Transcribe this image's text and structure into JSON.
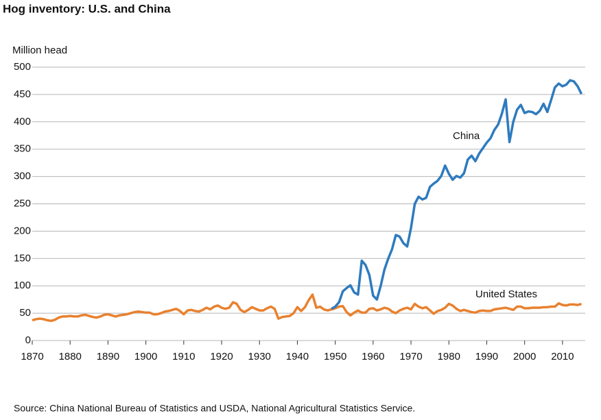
{
  "chart_data": {
    "type": "line",
    "title": "Hog inventory: U.S. and China",
    "y_label": "Million head",
    "source": "Source: China National Bureau of Statistics and USDA, National Agricultural Statistics Service.",
    "x": [
      1870,
      1871,
      1872,
      1873,
      1874,
      1875,
      1876,
      1877,
      1878,
      1879,
      1880,
      1881,
      1882,
      1883,
      1884,
      1885,
      1886,
      1887,
      1888,
      1889,
      1890,
      1891,
      1892,
      1893,
      1894,
      1895,
      1896,
      1897,
      1898,
      1899,
      1900,
      1901,
      1902,
      1903,
      1904,
      1905,
      1906,
      1907,
      1908,
      1909,
      1910,
      1911,
      1912,
      1913,
      1914,
      1915,
      1916,
      1917,
      1918,
      1919,
      1920,
      1921,
      1922,
      1923,
      1924,
      1925,
      1926,
      1927,
      1928,
      1929,
      1930,
      1931,
      1932,
      1933,
      1934,
      1935,
      1936,
      1937,
      1938,
      1939,
      1940,
      1941,
      1942,
      1943,
      1944,
      1945,
      1946,
      1947,
      1948,
      1949,
      1950,
      1951,
      1952,
      1953,
      1954,
      1955,
      1956,
      1957,
      1958,
      1959,
      1960,
      1961,
      1962,
      1963,
      1964,
      1965,
      1966,
      1967,
      1968,
      1969,
      1970,
      1971,
      1972,
      1973,
      1974,
      1975,
      1976,
      1977,
      1978,
      1979,
      1980,
      1981,
      1982,
      1983,
      1984,
      1985,
      1986,
      1987,
      1988,
      1989,
      1990,
      1991,
      1992,
      1993,
      1994,
      1995,
      1996,
      1997,
      1998,
      1999,
      2000,
      2001,
      2002,
      2003,
      2004,
      2005,
      2006,
      2007,
      2008,
      2009,
      2010,
      2011,
      2012,
      2013,
      2014,
      2015
    ],
    "series": [
      {
        "name": "United States",
        "color": "#e8812f",
        "values": [
          37,
          39,
          40,
          39,
          37,
          36,
          38,
          42,
          44,
          44,
          45,
          44,
          44,
          46,
          47,
          45,
          43,
          42,
          44,
          47,
          48,
          46,
          44,
          46,
          47,
          48,
          50,
          52,
          53,
          52,
          51,
          51,
          48,
          48,
          50,
          53,
          54,
          56,
          58,
          54,
          48,
          55,
          56,
          54,
          53,
          56,
          60,
          57,
          62,
          64,
          60,
          58,
          60,
          70,
          67,
          56,
          52,
          56,
          61,
          58,
          55,
          55,
          59,
          62,
          58,
          40,
          43,
          44,
          45,
          50,
          61,
          54,
          61,
          74,
          84,
          60,
          62,
          57,
          55,
          57,
          59,
          62,
          63,
          52,
          46,
          51,
          55,
          51,
          51,
          58,
          59,
          55,
          57,
          60,
          58,
          53,
          50,
          55,
          58,
          60,
          57,
          67,
          62,
          59,
          61,
          55,
          49,
          54,
          56,
          60,
          67,
          64,
          58,
          54,
          56,
          54,
          52,
          51,
          54,
          55,
          54,
          54,
          57,
          58,
          59,
          60,
          58,
          56,
          62,
          62,
          59,
          59,
          60,
          60,
          60,
          61,
          61,
          62,
          62,
          68,
          65,
          64,
          66,
          66,
          65,
          67
        ]
      },
      {
        "name": "China",
        "color": "#2e7bbf",
        "values": [
          null,
          null,
          null,
          null,
          null,
          null,
          null,
          null,
          null,
          null,
          null,
          null,
          null,
          null,
          null,
          null,
          null,
          null,
          null,
          null,
          null,
          null,
          null,
          null,
          null,
          null,
          null,
          null,
          null,
          null,
          null,
          null,
          null,
          null,
          null,
          null,
          null,
          null,
          null,
          null,
          null,
          null,
          null,
          null,
          null,
          null,
          null,
          null,
          null,
          null,
          null,
          null,
          null,
          null,
          null,
          null,
          null,
          null,
          null,
          null,
          null,
          null,
          null,
          null,
          null,
          null,
          null,
          null,
          null,
          null,
          null,
          null,
          null,
          null,
          null,
          null,
          null,
          null,
          null,
          58,
          62,
          70,
          90,
          96,
          101,
          88,
          84,
          146,
          138,
          120,
          82,
          75,
          100,
          130,
          150,
          167,
          193,
          190,
          178,
          172,
          206,
          250,
          263,
          258,
          261,
          281,
          287,
          292,
          301,
          320,
          305,
          294,
          301,
          298,
          306,
          331,
          338,
          328,
          342,
          352,
          362,
          370,
          385,
          395,
          415,
          441,
          363,
          400,
          422,
          431,
          416,
          419,
          418,
          414,
          420,
          433,
          418,
          440,
          463,
          470,
          465,
          468,
          476,
          474,
          465,
          451
        ]
      }
    ],
    "xlim": [
      1870,
      2016
    ],
    "xticks": [
      1870,
      1880,
      1890,
      1900,
      1910,
      1920,
      1930,
      1940,
      1950,
      1960,
      1970,
      1980,
      1990,
      2000,
      2010
    ],
    "ylim": [
      0,
      500
    ],
    "yticks": [
      0,
      50,
      100,
      150,
      200,
      250,
      300,
      350,
      400,
      450,
      500
    ],
    "grid": true
  }
}
